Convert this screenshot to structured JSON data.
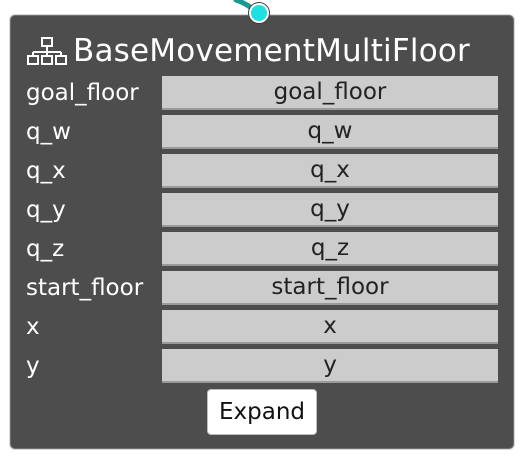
{
  "node": {
    "title": "BaseMovementMultiFloor",
    "icon": "hierarchy-icon",
    "accent_color": "#1fe0e0",
    "wire_color": "#1a9a8a",
    "fields": [
      {
        "label": "goal_floor",
        "value": "goal_floor"
      },
      {
        "label": "q_w",
        "value": "q_w"
      },
      {
        "label": "q_x",
        "value": "q_x"
      },
      {
        "label": "q_y",
        "value": "q_y"
      },
      {
        "label": "q_z",
        "value": "q_z"
      },
      {
        "label": "start_floor",
        "value": "start_floor"
      },
      {
        "label": "x",
        "value": "x"
      },
      {
        "label": "y",
        "value": "y"
      }
    ],
    "expand_label": "Expand"
  }
}
